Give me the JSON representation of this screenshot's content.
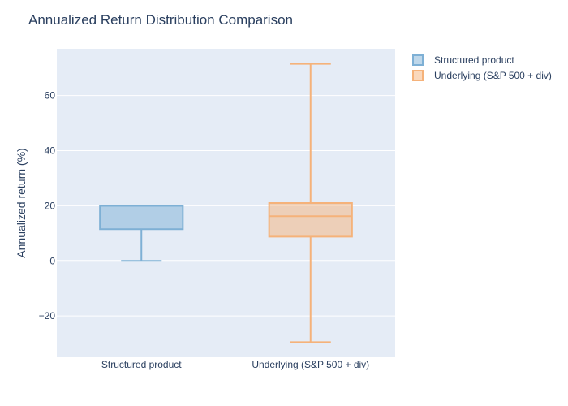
{
  "chart_data": {
    "type": "box",
    "title": "Annualized Return Distribution Comparison",
    "xlabel": "",
    "ylabel": "Annualized return (%)",
    "ylim": [
      -35,
      77
    ],
    "yticks": [
      -20,
      0,
      20,
      40,
      60
    ],
    "ytick_labels": [
      "−20",
      "0",
      "20",
      "40",
      "60"
    ],
    "grid": true,
    "legend_position": "top-right",
    "categories": [
      "Structured product",
      "Underlying (S&P 500 + div)"
    ],
    "series": [
      {
        "name": "Structured product",
        "color": "#7eb0d5",
        "fill": "rgba(126,176,213,0.5)",
        "min": 0,
        "q1": 11.5,
        "median": 20,
        "q3": 20,
        "max": 20
      },
      {
        "name": "Underlying (S&P 500 + div)",
        "color": "#f5b27a",
        "fill": "rgba(245,178,122,0.5)",
        "min": -29.5,
        "q1": 8.8,
        "median": 16.2,
        "q3": 21,
        "max": 71.5
      }
    ]
  }
}
